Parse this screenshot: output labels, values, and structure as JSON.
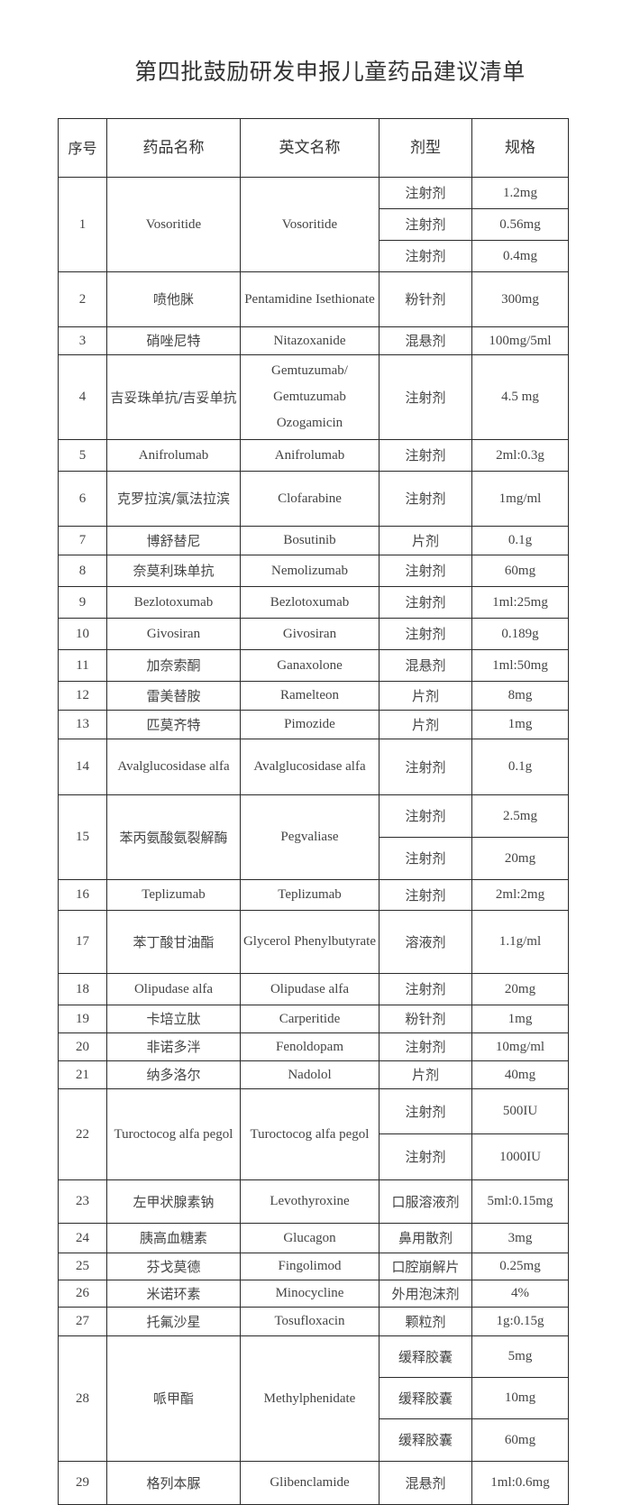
{
  "title": "第四批鼓励研发申报儿童药品建议清单",
  "headers": {
    "no": "序号",
    "cn_name": "药品名称",
    "en_name": "英文名称",
    "form": "剂型",
    "spec": "规格"
  },
  "rows": [
    {
      "no": "1",
      "cn": "Vosoritide",
      "en": "Vosoritide",
      "items": [
        {
          "form": "注射剂",
          "spec": "1.2mg"
        },
        {
          "form": "注射剂",
          "spec": "0.56mg"
        },
        {
          "form": "注射剂",
          "spec": "0.4mg"
        }
      ]
    },
    {
      "no": "2",
      "cn": "喷他脒",
      "en": "Pentamidine Isethionate",
      "items": [
        {
          "form": "粉针剂",
          "spec": "300mg"
        }
      ]
    },
    {
      "no": "3",
      "cn": "硝唑尼特",
      "en": "Nitazoxanide",
      "items": [
        {
          "form": "混悬剂",
          "spec": "100mg/5ml"
        }
      ]
    },
    {
      "no": "4",
      "cn": "吉妥珠单抗/吉妥单抗",
      "en": "Gemtuzumab/ Gemtuzumab Ozogamicin",
      "items": [
        {
          "form": "注射剂",
          "spec": "4.5 mg"
        }
      ]
    },
    {
      "no": "5",
      "cn": "Anifrolumab",
      "en": "Anifrolumab",
      "items": [
        {
          "form": "注射剂",
          "spec": "2ml:0.3g"
        }
      ]
    },
    {
      "no": "6",
      "cn": "克罗拉滨/氯法拉滨",
      "en": "Clofarabine",
      "items": [
        {
          "form": "注射剂",
          "spec": "1mg/ml"
        }
      ]
    },
    {
      "no": "7",
      "cn": "博舒替尼",
      "en": "Bosutinib",
      "items": [
        {
          "form": "片剂",
          "spec": "0.1g"
        }
      ]
    },
    {
      "no": "8",
      "cn": "奈莫利珠单抗",
      "en": "Nemolizumab",
      "items": [
        {
          "form": "注射剂",
          "spec": "60mg"
        }
      ]
    },
    {
      "no": "9",
      "cn": "Bezlotoxumab",
      "en": "Bezlotoxumab",
      "items": [
        {
          "form": "注射剂",
          "spec": "1ml:25mg"
        }
      ]
    },
    {
      "no": "10",
      "cn": "Givosiran",
      "en": "Givosiran",
      "items": [
        {
          "form": "注射剂",
          "spec": "0.189g"
        }
      ]
    },
    {
      "no": "11",
      "cn": "加奈索酮",
      "en": "Ganaxolone",
      "items": [
        {
          "form": "混悬剂",
          "spec": "1ml:50mg"
        }
      ]
    },
    {
      "no": "12",
      "cn": "雷美替胺",
      "en": "Ramelteon",
      "items": [
        {
          "form": "片剂",
          "spec": "8mg"
        }
      ]
    },
    {
      "no": "13",
      "cn": "匹莫齐特",
      "en": "Pimozide",
      "items": [
        {
          "form": "片剂",
          "spec": "1mg"
        }
      ]
    },
    {
      "no": "14",
      "cn": "Avalglucosidase alfa",
      "en": "Avalglucosidase alfa",
      "items": [
        {
          "form": "注射剂",
          "spec": "0.1g"
        }
      ]
    },
    {
      "no": "15",
      "cn": "苯丙氨酸氨裂解酶",
      "en": "Pegvaliase",
      "items": [
        {
          "form": "注射剂",
          "spec": "2.5mg"
        },
        {
          "form": "注射剂",
          "spec": "20mg"
        }
      ]
    },
    {
      "no": "16",
      "cn": "Teplizumab",
      "en": "Teplizumab",
      "items": [
        {
          "form": "注射剂",
          "spec": "2ml:2mg"
        }
      ]
    },
    {
      "no": "17",
      "cn": "苯丁酸甘油酯",
      "en": "Glycerol Phenylbutyrate",
      "items": [
        {
          "form": "溶液剂",
          "spec": "1.1g/ml"
        }
      ]
    },
    {
      "no": "18",
      "cn": "Olipudase alfa",
      "en": "Olipudase alfa",
      "items": [
        {
          "form": "注射剂",
          "spec": "20mg"
        }
      ]
    },
    {
      "no": "19",
      "cn": "卡培立肽",
      "en": "Carperitide",
      "items": [
        {
          "form": "粉针剂",
          "spec": "1mg"
        }
      ]
    },
    {
      "no": "20",
      "cn": "非诺多泮",
      "en": "Fenoldopam",
      "items": [
        {
          "form": "注射剂",
          "spec": "10mg/ml"
        }
      ]
    },
    {
      "no": "21",
      "cn": "纳多洛尔",
      "en": "Nadolol",
      "items": [
        {
          "form": "片剂",
          "spec": "40mg"
        }
      ]
    },
    {
      "no": "22",
      "cn": "Turoctocog alfa pegol",
      "en": "Turoctocog alfa pegol",
      "items": [
        {
          "form": "注射剂",
          "spec": "500IU"
        },
        {
          "form": "注射剂",
          "spec": "1000IU"
        }
      ]
    },
    {
      "no": "23",
      "cn": "左甲状腺素钠",
      "en": "Levothyroxine",
      "items": [
        {
          "form": "口服溶液剂",
          "spec": "5ml:0.15mg"
        }
      ]
    },
    {
      "no": "24",
      "cn": "胰高血糖素",
      "en": "Glucagon",
      "items": [
        {
          "form": "鼻用散剂",
          "spec": "3mg"
        }
      ]
    },
    {
      "no": "25",
      "cn": "芬戈莫德",
      "en": "Fingolimod",
      "items": [
        {
          "form": "口腔崩解片",
          "spec": "0.25mg"
        }
      ]
    },
    {
      "no": "26",
      "cn": "米诺环素",
      "en": "Minocycline",
      "items": [
        {
          "form": "外用泡沫剂",
          "spec": "4%"
        }
      ]
    },
    {
      "no": "27",
      "cn": "托氟沙星",
      "en": "Tosufloxacin",
      "items": [
        {
          "form": "颗粒剂",
          "spec": "1g:0.15g"
        }
      ]
    },
    {
      "no": "28",
      "cn": "哌甲酯",
      "en": "Methylphenidate",
      "items": [
        {
          "form": "缓释胶囊",
          "spec": "5mg"
        },
        {
          "form": "缓释胶囊",
          "spec": "10mg"
        },
        {
          "form": "缓释胶囊",
          "spec": "60mg"
        }
      ]
    },
    {
      "no": "29",
      "cn": "格列本脲",
      "en": "Glibenclamide",
      "items": [
        {
          "form": "混悬剂",
          "spec": "1ml:0.6mg"
        }
      ]
    }
  ]
}
